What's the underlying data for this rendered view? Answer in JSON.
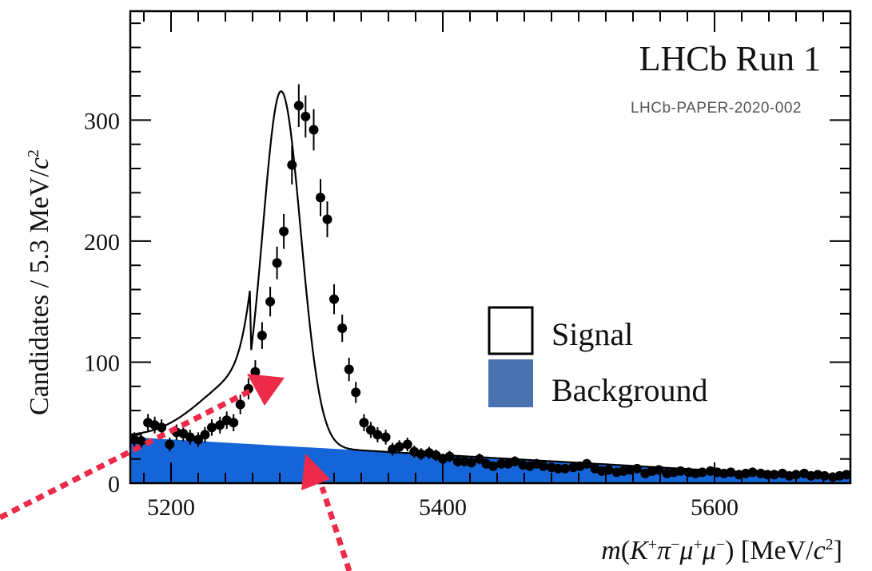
{
  "colors": {
    "background_fill": "#1565d8",
    "legend_background_swatch": "#4a72b0",
    "fit_line": "#000000",
    "data_points": "#000000",
    "arrows": "#ee2a4a"
  },
  "header": {
    "experiment": "LHCb Run 1",
    "paper_id": "LHCb-PAPER-2020-002"
  },
  "legend": {
    "signal": "Signal",
    "background": "Background"
  },
  "chart_data": {
    "type": "scatter",
    "title": "LHCb Run 1",
    "annotation": "LHCb-PAPER-2020-002",
    "xlabel": "m(K⁺π⁻μ⁺μ⁻) [MeV/c²]",
    "ylabel": "Candidates / 5.3 MeV/c²",
    "xlim": [
      5170,
      5700
    ],
    "ylim": [
      0,
      390
    ],
    "xticks": [
      5200,
      5400,
      5600
    ],
    "yticks": [
      0,
      100,
      200,
      300
    ],
    "grid": false,
    "legend_position": "right",
    "series": [
      {
        "name": "Data",
        "kind": "points-with-errors",
        "x": [
          5173,
          5178,
          5183,
          5188,
          5193,
          5199,
          5204,
          5209,
          5214,
          5220,
          5225,
          5230,
          5236,
          5241,
          5246,
          5251,
          5257,
          5262,
          5267,
          5273,
          5278,
          5283,
          5289,
          5294,
          5299,
          5305,
          5310,
          5315,
          5320,
          5326,
          5331,
          5336,
          5342,
          5347,
          5352,
          5358,
          5363,
          5368,
          5374,
          5379,
          5384,
          5390,
          5395,
          5400,
          5405,
          5411,
          5416,
          5421,
          5427,
          5432,
          5437,
          5443,
          5448,
          5453,
          5459,
          5464,
          5469,
          5474,
          5480,
          5485,
          5490,
          5496,
          5501,
          5506,
          5512,
          5517,
          5522,
          5528,
          5533,
          5538,
          5543,
          5549,
          5554,
          5559,
          5565,
          5570,
          5575,
          5581,
          5586,
          5591,
          5597,
          5602,
          5607,
          5612,
          5618,
          5623,
          5628,
          5634,
          5639,
          5644,
          5650,
          5655,
          5660,
          5666,
          5671,
          5676,
          5681,
          5687,
          5692,
          5697
        ],
        "values": [
          36,
          35,
          50,
          48,
          46,
          32,
          42,
          41,
          38,
          36,
          40,
          46,
          48,
          52,
          50,
          65,
          78,
          92,
          122,
          150,
          182,
          208,
          263,
          312,
          303,
          292,
          236,
          218,
          152,
          128,
          94,
          75,
          50,
          44,
          40,
          38,
          28,
          30,
          32,
          26,
          24,
          25,
          23,
          20,
          22,
          18,
          18,
          17,
          20,
          16,
          14,
          16,
          16,
          18,
          15,
          14,
          16,
          14,
          13,
          12,
          12,
          13,
          14,
          16,
          12,
          10,
          11,
          9,
          10,
          11,
          12,
          8,
          10,
          11,
          8,
          9,
          10,
          9,
          8,
          9,
          10,
          9,
          8,
          9,
          7,
          8,
          9,
          8,
          7,
          7,
          8,
          6,
          7,
          8,
          6,
          7,
          6,
          5,
          6,
          7
        ]
      },
      {
        "name": "Signal",
        "kind": "curve"
      },
      {
        "name": "Background",
        "kind": "filled-area",
        "x": [
          5170,
          5700
        ],
        "values": [
          38,
          4
        ]
      }
    ]
  }
}
